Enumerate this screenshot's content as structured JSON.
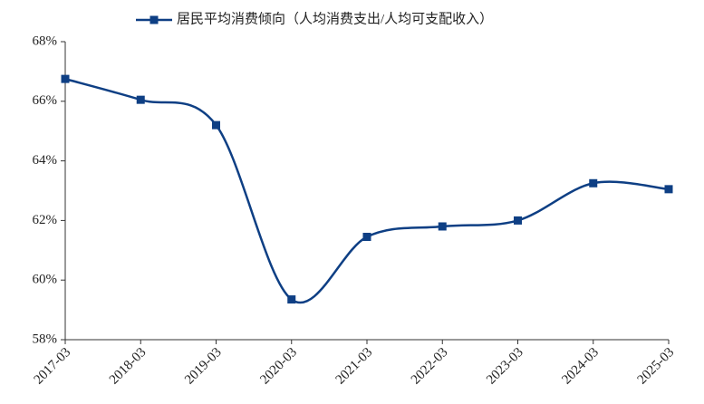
{
  "chart_data": {
    "type": "line",
    "categories": [
      "2017-03",
      "2018-03",
      "2019-03",
      "2020-03",
      "2021-03",
      "2022-03",
      "2023-03",
      "2024-03",
      "2025-03"
    ],
    "series": [
      {
        "name": "居民平均消费倾向（人均消费支出/人均可支配收入）",
        "color": "#0e3f84",
        "values": [
          66.75,
          66.05,
          65.2,
          59.35,
          61.45,
          61.8,
          62.0,
          63.25,
          63.05
        ]
      }
    ],
    "ylim": [
      58,
      68
    ],
    "yticks": [
      {
        "value": 58,
        "label": "58%"
      },
      {
        "value": 60,
        "label": "60%"
      },
      {
        "value": 62,
        "label": "62%"
      },
      {
        "value": 64,
        "label": "64%"
      },
      {
        "value": 66,
        "label": "66%"
      },
      {
        "value": 68,
        "label": "68%"
      }
    ],
    "grid": false,
    "smooth": true
  }
}
